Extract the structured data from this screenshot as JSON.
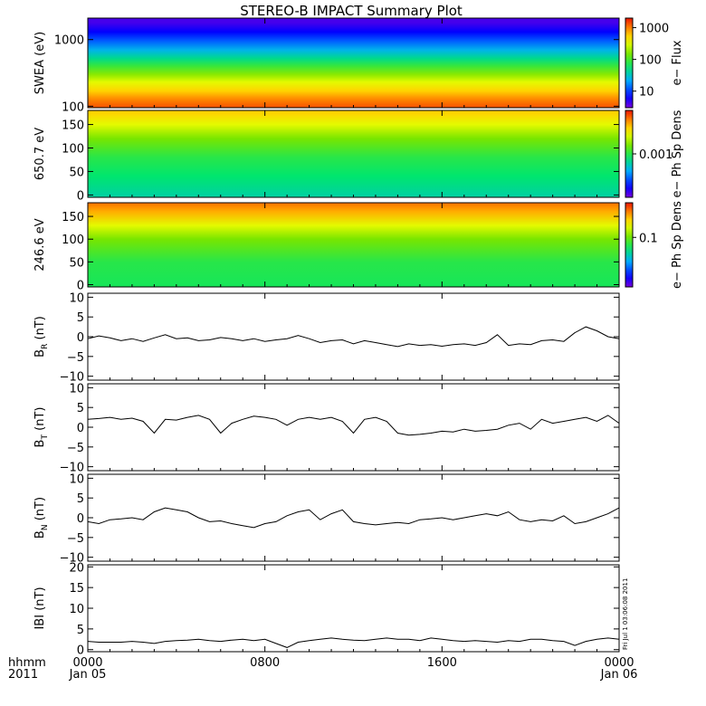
{
  "title": "STEREO-B IMPACT Summary Plot",
  "corner": {
    "line1": "hhmm",
    "line2": "2011"
  },
  "xaxis": {
    "ticks": [
      {
        "hour": 0,
        "label": "0000",
        "sub": "Jan 05"
      },
      {
        "hour": 8,
        "label": "0800",
        "sub": ""
      },
      {
        "hour": 16,
        "label": "1600",
        "sub": ""
      },
      {
        "hour": 24,
        "label": "0000",
        "sub": "Jan 06"
      }
    ],
    "range": [
      0,
      24
    ]
  },
  "side_stamp": "Fri Jul 1 03:06:08 2011",
  "colors": {
    "line": "#000000",
    "frame": "#000000"
  },
  "chart_data": [
    {
      "type": "heatmap",
      "ylabel": "SWEA (eV)",
      "yscale": "log",
      "ylim": [
        95,
        2100
      ],
      "yticks": [
        {
          "v": 100,
          "label": "100"
        },
        {
          "v": 1000,
          "label": "1000"
        }
      ],
      "colorbar": {
        "label": "e− Flux",
        "scale": "log",
        "range": [
          3,
          2000
        ],
        "ticks": [
          {
            "v": 10,
            "label": "10"
          },
          {
            "v": 100,
            "label": "100"
          },
          {
            "v": 1000,
            "label": "1000"
          }
        ]
      },
      "bands": [
        {
          "y": 100,
          "level": 0.93
        },
        {
          "y": 130,
          "level": 0.88
        },
        {
          "y": 170,
          "level": 0.8
        },
        {
          "y": 230,
          "level": 0.72
        },
        {
          "y": 300,
          "level": 0.62
        },
        {
          "y": 400,
          "level": 0.52
        },
        {
          "y": 520,
          "level": 0.42
        },
        {
          "y": 700,
          "level": 0.32
        },
        {
          "y": 950,
          "level": 0.22
        },
        {
          "y": 1300,
          "level": 0.12
        },
        {
          "y": 1800,
          "level": 0.05
        }
      ]
    },
    {
      "type": "heatmap",
      "ylabel": "650.7 eV",
      "ylim": [
        -5,
        180
      ],
      "yticks": [
        {
          "v": 0,
          "label": "0"
        },
        {
          "v": 50,
          "label": "50"
        },
        {
          "v": 100,
          "label": "100"
        },
        {
          "v": 150,
          "label": "150"
        }
      ],
      "colorbar": {
        "label": "e− Ph Sp Dens",
        "scale": "log",
        "range": [
          5e-05,
          0.02
        ],
        "ticks": [
          {
            "v": 0.001,
            "label": "0.001"
          }
        ]
      },
      "bands": [
        {
          "y": 0,
          "level": 0.4
        },
        {
          "y": 40,
          "level": 0.45
        },
        {
          "y": 80,
          "level": 0.5
        },
        {
          "y": 120,
          "level": 0.6
        },
        {
          "y": 150,
          "level": 0.72
        },
        {
          "y": 175,
          "level": 0.8
        }
      ]
    },
    {
      "type": "heatmap",
      "ylabel": "246.6 eV",
      "ylim": [
        -5,
        180
      ],
      "yticks": [
        {
          "v": 0,
          "label": "0"
        },
        {
          "v": 50,
          "label": "50"
        },
        {
          "v": 100,
          "label": "100"
        },
        {
          "v": 150,
          "label": "150"
        }
      ],
      "colorbar": {
        "label": "e− Ph Sp Dens",
        "scale": "log",
        "range": [
          0.01,
          0.5
        ],
        "ticks": [
          {
            "v": 0.1,
            "label": "0.1"
          }
        ]
      },
      "bands": [
        {
          "y": 0,
          "level": 0.48
        },
        {
          "y": 50,
          "level": 0.5
        },
        {
          "y": 100,
          "level": 0.6
        },
        {
          "y": 130,
          "level": 0.72
        },
        {
          "y": 160,
          "level": 0.84
        },
        {
          "y": 178,
          "level": 0.9
        }
      ]
    },
    {
      "type": "line",
      "ylabel": "B",
      "ysub": "R",
      "yunit": " (nT)",
      "ylim": [
        -11,
        11
      ],
      "yticks": [
        {
          "v": -10,
          "label": "−10"
        },
        {
          "v": -5,
          "label": "−5"
        },
        {
          "v": 0,
          "label": "0"
        },
        {
          "v": 5,
          "label": "5"
        },
        {
          "v": 10,
          "label": "10"
        }
      ],
      "x": [
        0,
        0.5,
        1,
        1.5,
        2,
        2.5,
        3,
        3.5,
        4,
        4.5,
        5,
        5.5,
        6,
        6.5,
        7,
        7.5,
        8,
        8.5,
        9,
        9.5,
        10,
        10.5,
        11,
        11.5,
        12,
        12.5,
        13,
        13.5,
        14,
        14.5,
        15,
        15.5,
        16,
        16.5,
        17,
        17.5,
        18,
        18.5,
        19,
        19.5,
        20,
        20.5,
        21,
        21.5,
        22,
        22.5,
        23,
        23.5,
        24
      ],
      "y": [
        -0.5,
        0.2,
        -0.3,
        -1.0,
        -0.5,
        -1.2,
        -0.3,
        0.5,
        -0.5,
        -0.3,
        -1.0,
        -0.8,
        -0.2,
        -0.5,
        -1.0,
        -0.5,
        -1.2,
        -0.8,
        -0.5,
        0.3,
        -0.5,
        -1.5,
        -1.0,
        -0.8,
        -1.8,
        -1.0,
        -1.5,
        -2.0,
        -2.5,
        -1.8,
        -2.2,
        -2.0,
        -2.4,
        -2.0,
        -1.8,
        -2.2,
        -1.5,
        0.5,
        -2.2,
        -1.8,
        -2.0,
        -1.0,
        -0.8,
        -1.2,
        1.0,
        2.5,
        1.5,
        0.0,
        -0.5
      ]
    },
    {
      "type": "line",
      "ylabel": "B",
      "ysub": "T",
      "yunit": " (nT)",
      "ylim": [
        -11,
        11
      ],
      "yticks": [
        {
          "v": -10,
          "label": "−10"
        },
        {
          "v": -5,
          "label": "−5"
        },
        {
          "v": 0,
          "label": "0"
        },
        {
          "v": 5,
          "label": "5"
        },
        {
          "v": 10,
          "label": "10"
        }
      ],
      "x": [
        0,
        0.5,
        1,
        1.5,
        2,
        2.5,
        3,
        3.5,
        4,
        4.5,
        5,
        5.5,
        6,
        6.5,
        7,
        7.5,
        8,
        8.5,
        9,
        9.5,
        10,
        10.5,
        11,
        11.5,
        12,
        12.5,
        13,
        13.5,
        14,
        14.5,
        15,
        15.5,
        16,
        16.5,
        17,
        17.5,
        18,
        18.5,
        19,
        19.5,
        20,
        20.5,
        21,
        21.5,
        22,
        22.5,
        23,
        23.5,
        24
      ],
      "y": [
        2.0,
        2.2,
        2.5,
        2.0,
        2.3,
        1.5,
        -1.5,
        2.0,
        1.8,
        2.5,
        3.0,
        2.0,
        -1.5,
        1.0,
        2.0,
        2.8,
        2.5,
        2.0,
        0.5,
        2.0,
        2.5,
        2.0,
        2.5,
        1.5,
        -1.5,
        2.0,
        2.5,
        1.5,
        -1.5,
        -2.0,
        -1.8,
        -1.5,
        -1.0,
        -1.2,
        -0.5,
        -1.0,
        -0.8,
        -0.5,
        0.5,
        1.0,
        -0.5,
        2.0,
        1.0,
        1.5,
        2.0,
        2.5,
        1.5,
        3.0,
        1.0
      ]
    },
    {
      "type": "line",
      "ylabel": "B",
      "ysub": "N",
      "yunit": " (nT)",
      "ylim": [
        -11,
        11
      ],
      "yticks": [
        {
          "v": -10,
          "label": "−10"
        },
        {
          "v": -5,
          "label": "−5"
        },
        {
          "v": 0,
          "label": "0"
        },
        {
          "v": 5,
          "label": "5"
        },
        {
          "v": 10,
          "label": "10"
        }
      ],
      "x": [
        0,
        0.5,
        1,
        1.5,
        2,
        2.5,
        3,
        3.5,
        4,
        4.5,
        5,
        5.5,
        6,
        6.5,
        7,
        7.5,
        8,
        8.5,
        9,
        9.5,
        10,
        10.5,
        11,
        11.5,
        12,
        12.5,
        13,
        13.5,
        14,
        14.5,
        15,
        15.5,
        16,
        16.5,
        17,
        17.5,
        18,
        18.5,
        19,
        19.5,
        20,
        20.5,
        21,
        21.5,
        22,
        22.5,
        23,
        23.5,
        24
      ],
      "y": [
        -1.0,
        -1.5,
        -0.5,
        -0.3,
        0.0,
        -0.5,
        1.5,
        2.5,
        2.0,
        1.5,
        0.0,
        -1.0,
        -0.8,
        -1.5,
        -2.0,
        -2.5,
        -1.5,
        -1.0,
        0.5,
        1.5,
        2.0,
        -0.5,
        1.0,
        2.0,
        -1.0,
        -1.5,
        -1.8,
        -1.5,
        -1.2,
        -1.5,
        -0.5,
        -0.3,
        0.0,
        -0.5,
        0.0,
        0.5,
        1.0,
        0.5,
        1.5,
        -0.5,
        -1.0,
        -0.5,
        -0.8,
        0.5,
        -1.5,
        -1.0,
        0.0,
        1.0,
        2.5
      ]
    },
    {
      "type": "line",
      "ylabel": "IBI",
      "ysub": "",
      "yunit": " (nT)",
      "ylim": [
        -0.5,
        20.5
      ],
      "yticks": [
        {
          "v": 0,
          "label": "0"
        },
        {
          "v": 5,
          "label": "5"
        },
        {
          "v": 10,
          "label": "10"
        },
        {
          "v": 15,
          "label": "15"
        },
        {
          "v": 20,
          "label": "20"
        }
      ],
      "x": [
        0,
        0.5,
        1,
        1.5,
        2,
        2.5,
        3,
        3.5,
        4,
        4.5,
        5,
        5.5,
        6,
        6.5,
        7,
        7.5,
        8,
        8.5,
        9,
        9.5,
        10,
        10.5,
        11,
        11.5,
        12,
        12.5,
        13,
        13.5,
        14,
        14.5,
        15,
        15.5,
        16,
        16.5,
        17,
        17.5,
        18,
        18.5,
        19,
        19.5,
        20,
        20.5,
        21,
        21.5,
        22,
        22.5,
        23,
        23.5,
        24
      ],
      "y": [
        2.0,
        1.8,
        1.8,
        1.8,
        2.0,
        1.8,
        1.5,
        2.0,
        2.2,
        2.3,
        2.5,
        2.2,
        2.0,
        2.3,
        2.5,
        2.2,
        2.5,
        1.5,
        0.5,
        1.8,
        2.2,
        2.5,
        2.8,
        2.5,
        2.3,
        2.2,
        2.5,
        2.8,
        2.5,
        2.5,
        2.2,
        2.8,
        2.5,
        2.2,
        2.0,
        2.2,
        2.0,
        1.8,
        2.2,
        2.0,
        2.5,
        2.5,
        2.2,
        2.0,
        1.0,
        2.0,
        2.5,
        2.8,
        2.5
      ]
    }
  ]
}
